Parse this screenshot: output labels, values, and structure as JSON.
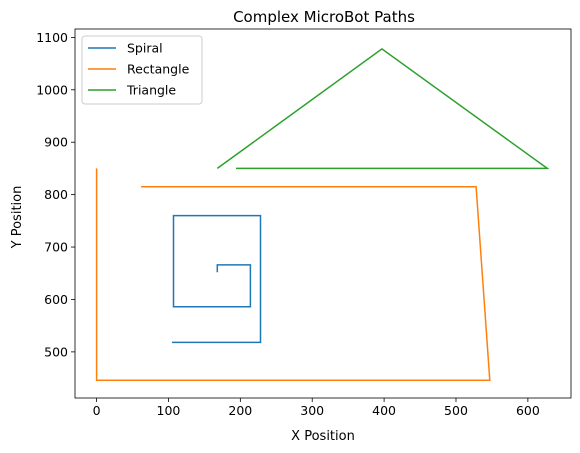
{
  "chart_data": {
    "type": "line",
    "title": "Complex MicroBot Paths",
    "xlabel": "X Position",
    "ylabel": "Y Position",
    "xlim": [
      -30,
      660
    ],
    "ylim": [
      412,
      1116
    ],
    "x_ticks": [
      0,
      100,
      200,
      300,
      400,
      500,
      600
    ],
    "y_ticks": [
      500,
      600,
      700,
      800,
      900,
      1000,
      1100
    ],
    "grid": false,
    "legend_position": "top-left",
    "series": [
      {
        "name": "Spiral",
        "color": "#1f77b4",
        "x": [
          168,
          168,
          214,
          214,
          107,
          107,
          228,
          228,
          105
        ],
        "y": [
          652,
          666,
          666,
          586,
          586,
          760,
          760,
          518,
          518
        ]
      },
      {
        "name": "Rectangle",
        "color": "#ff7f0e",
        "x": [
          0,
          0,
          547,
          528,
          62
        ],
        "y": [
          850,
          446,
          446,
          815,
          815
        ]
      },
      {
        "name": "Triangle",
        "color": "#2ca02c",
        "x": [
          168,
          397,
          627,
          194
        ],
        "y": [
          850,
          1078,
          850,
          850
        ]
      }
    ]
  }
}
